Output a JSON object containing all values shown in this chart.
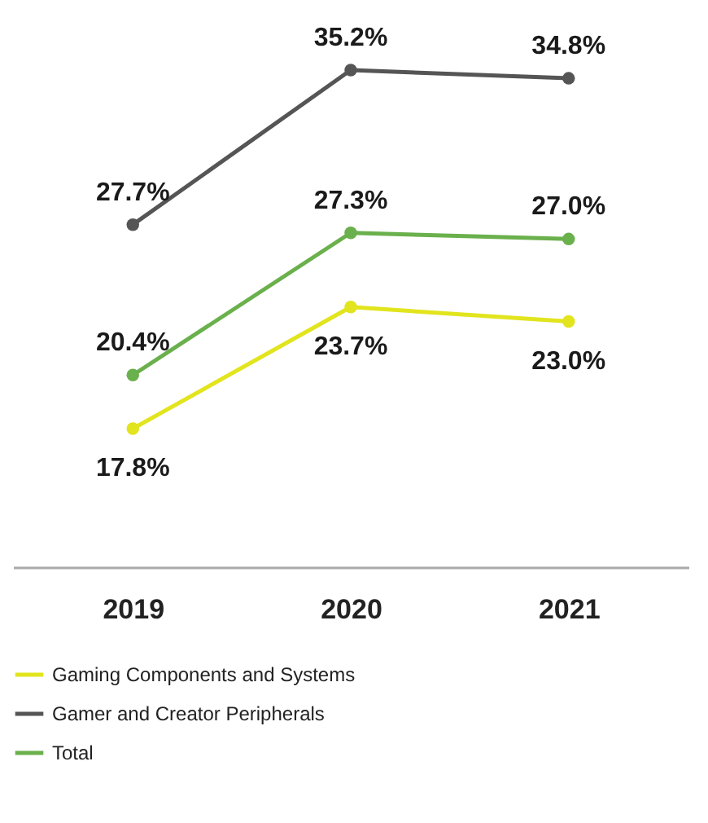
{
  "chart_data": {
    "type": "line",
    "categories": [
      "2019",
      "2020",
      "2021"
    ],
    "legend": "bottom",
    "marker": "circle",
    "line_style": "solid",
    "grid": false,
    "series": [
      {
        "name": "Gaming Components and Systems",
        "color": "#e2e41e",
        "values": [
          17.8,
          23.7,
          23.0
        ],
        "value_labels": [
          "17.8%",
          "23.7%",
          "23.0%"
        ]
      },
      {
        "name": "Gamer and Creator Peripherals",
        "color": "#555555",
        "values": [
          27.7,
          35.2,
          34.8
        ],
        "value_labels": [
          "27.7%",
          "35.2%",
          "34.8%"
        ]
      },
      {
        "name": "Total",
        "color": "#6ab04c",
        "values": [
          20.4,
          27.3,
          27.0
        ],
        "value_labels": [
          "20.4%",
          "27.3%",
          "27.0%"
        ]
      }
    ]
  }
}
